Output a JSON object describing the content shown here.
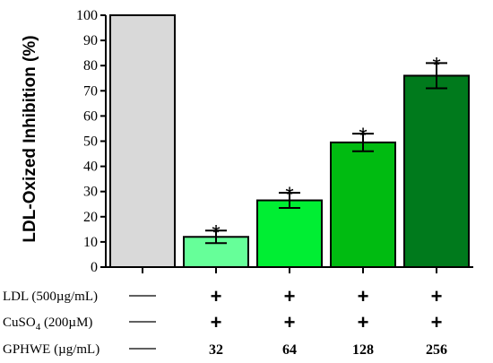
{
  "chart_data": {
    "type": "bar",
    "ylabel": "LDL-Oxized Inhibition (%)",
    "ylim": [
      0,
      100
    ],
    "yticks": [
      "0",
      "10",
      "20",
      "30",
      "40",
      "50",
      "60",
      "70",
      "80",
      "90",
      "100"
    ],
    "grid": false,
    "categories": [
      "",
      "32",
      "64",
      "128",
      "256"
    ],
    "values": [
      100,
      12,
      26.5,
      49.5,
      76
    ],
    "errors": [
      0,
      2.5,
      3,
      3.5,
      5
    ],
    "significance": [
      "",
      "*",
      "*",
      "*",
      "*"
    ],
    "colors": [
      "#d9d9d9",
      "#66ff99",
      "#00ee33",
      "#00bb11",
      "#007a1c"
    ]
  },
  "conditions": [
    {
      "label": "LDL (500µg/mL)",
      "values": [
        "—",
        "+",
        "+",
        "+",
        "+"
      ]
    },
    {
      "label_main": "CuSO",
      "label_sub": "4",
      "label_tail": " (200µM)",
      "values": [
        "—",
        "+",
        "+",
        "+",
        "+"
      ]
    },
    {
      "label": "GPHWE (µg/mL)",
      "values": [
        "—",
        "32",
        "64",
        "128",
        "256"
      ]
    }
  ]
}
